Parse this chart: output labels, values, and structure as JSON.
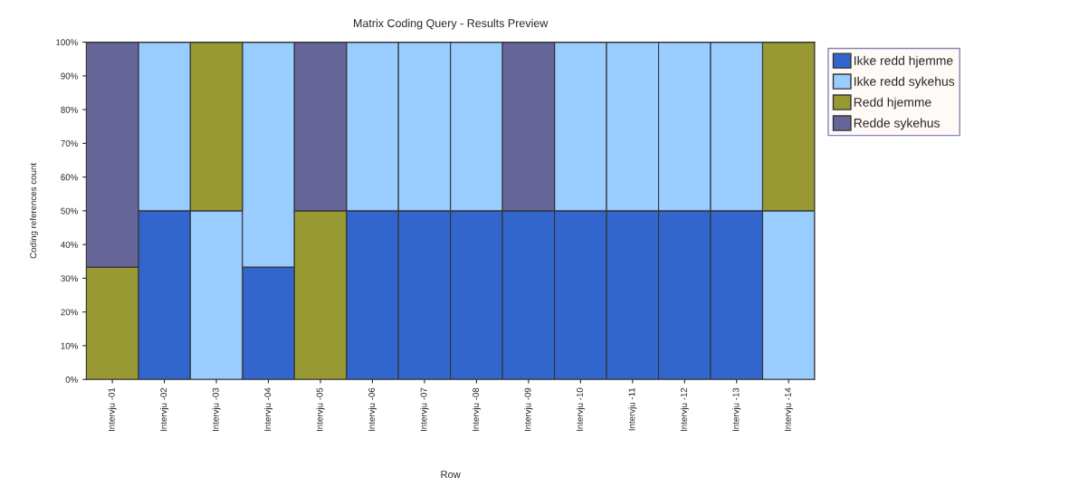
{
  "chart_data": {
    "type": "bar",
    "stacked": true,
    "title": "Matrix Coding Query - Results Preview",
    "xlabel": "Row",
    "ylabel": "Coding references count",
    "categories": [
      "Intervju -01",
      "Intervju -02",
      "Intervju -03",
      "Intervju -04",
      "Intervju -05",
      "Intervju -06",
      "Intervju -07",
      "Intervju -08",
      "Intervju -09",
      "Intervju -10",
      "Intervju -11",
      "Intervju -12",
      "Intervju -13",
      "Intervju -14"
    ],
    "series": [
      {
        "name": "Ikke redd hjemme",
        "color": "#3366cc",
        "values": [
          0,
          50,
          0,
          33.3,
          0,
          50,
          50,
          50,
          50,
          50,
          50,
          50,
          50,
          0
        ]
      },
      {
        "name": "Ikke redd sykehus",
        "color": "#99ccff",
        "values": [
          0,
          50,
          50,
          66.7,
          0,
          50,
          50,
          50,
          0,
          50,
          50,
          50,
          50,
          50
        ]
      },
      {
        "name": "Redd hjemme",
        "color": "#999933",
        "values": [
          33.3,
          0,
          50,
          0,
          50,
          0,
          0,
          0,
          0,
          0,
          0,
          0,
          0,
          50
        ]
      },
      {
        "name": "Redde sykehus",
        "color": "#666699",
        "values": [
          66.7,
          0,
          0,
          0,
          50,
          0,
          0,
          0,
          50,
          0,
          0,
          0,
          0,
          0
        ]
      }
    ],
    "ylim": [
      0,
      100
    ],
    "yticks": [
      {
        "value": 0,
        "label": "0%"
      },
      {
        "value": 10,
        "label": "10%"
      },
      {
        "value": 20,
        "label": "20%"
      },
      {
        "value": 30,
        "label": "30%"
      },
      {
        "value": 40,
        "label": "40%"
      },
      {
        "value": 50,
        "label": "50%"
      },
      {
        "value": 60,
        "label": "60%"
      },
      {
        "value": 70,
        "label": "70%"
      },
      {
        "value": 80,
        "label": "80%"
      },
      {
        "value": 90,
        "label": "90%"
      },
      {
        "value": 100,
        "label": "100%"
      }
    ],
    "legend": "right"
  }
}
